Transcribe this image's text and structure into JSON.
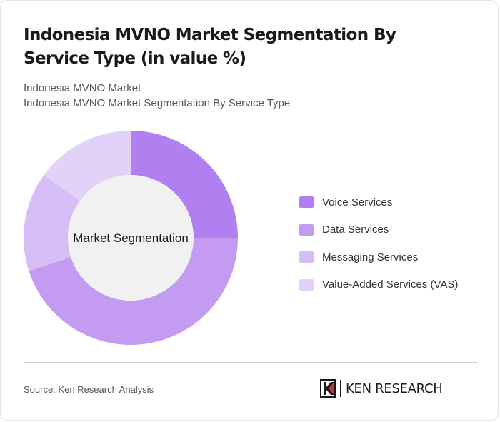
{
  "title": "Indonesia MVNO Market Segmentation By Service Type (in value %)",
  "subtitle_line1": "Indonesia MVNO Market",
  "subtitle_line2": "Indonesia MVNO Market Segmentation By Service Type",
  "source": "Source: Ken Research Analysis",
  "logo_text": "KEN RESEARCH",
  "logo_icon": "ken-research-k-logo",
  "chart_data": {
    "type": "pie",
    "donut": true,
    "center_label": "Market Segmentation",
    "legend_position": "right",
    "categories": [
      "Voice Services",
      "Data Services",
      "Messaging Services",
      "Value-Added Services (VAS)"
    ],
    "values": [
      25,
      45,
      15,
      15
    ],
    "colors": [
      "#b07ff0",
      "#c39cf2",
      "#d7bdf5",
      "#e3d2f8"
    ]
  },
  "colors": {
    "center_fill": "#f1f1f1",
    "divider": "#d4d4d4",
    "title_text": "#1a1a1a",
    "muted_text": "#555555"
  }
}
